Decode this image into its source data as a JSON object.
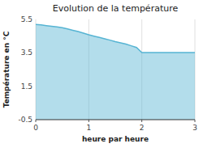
{
  "chart_data": {
    "type": "area",
    "title": "Evolution de la température",
    "x_label": "heure par heure",
    "y_label": "Température en °C",
    "x": [
      0,
      0.1,
      0.2,
      0.3,
      0.4,
      0.5,
      0.6,
      0.7,
      0.8,
      0.9,
      1.0,
      1.1,
      1.2,
      1.3,
      1.4,
      1.5,
      1.6,
      1.7,
      1.8,
      1.9,
      2.0,
      2.1,
      2.2,
      2.3,
      2.4,
      2.5,
      2.6,
      2.7,
      2.8,
      2.9,
      3.0
    ],
    "values": [
      5.2,
      5.17,
      5.13,
      5.09,
      5.05,
      5.0,
      4.93,
      4.85,
      4.77,
      4.68,
      4.58,
      4.5,
      4.42,
      4.34,
      4.26,
      4.17,
      4.1,
      4.02,
      3.92,
      3.82,
      3.52,
      3.52,
      3.52,
      3.52,
      3.52,
      3.52,
      3.52,
      3.52,
      3.52,
      3.52,
      3.52
    ],
    "color": "#56b4d3",
    "xlim": [
      0,
      3
    ],
    "ylim": [
      -0.5,
      5.5
    ],
    "xticks": [
      0,
      1,
      2,
      3
    ],
    "yticks": [
      -0.5,
      1.5,
      3.5,
      5.5
    ],
    "grid": "x"
  }
}
